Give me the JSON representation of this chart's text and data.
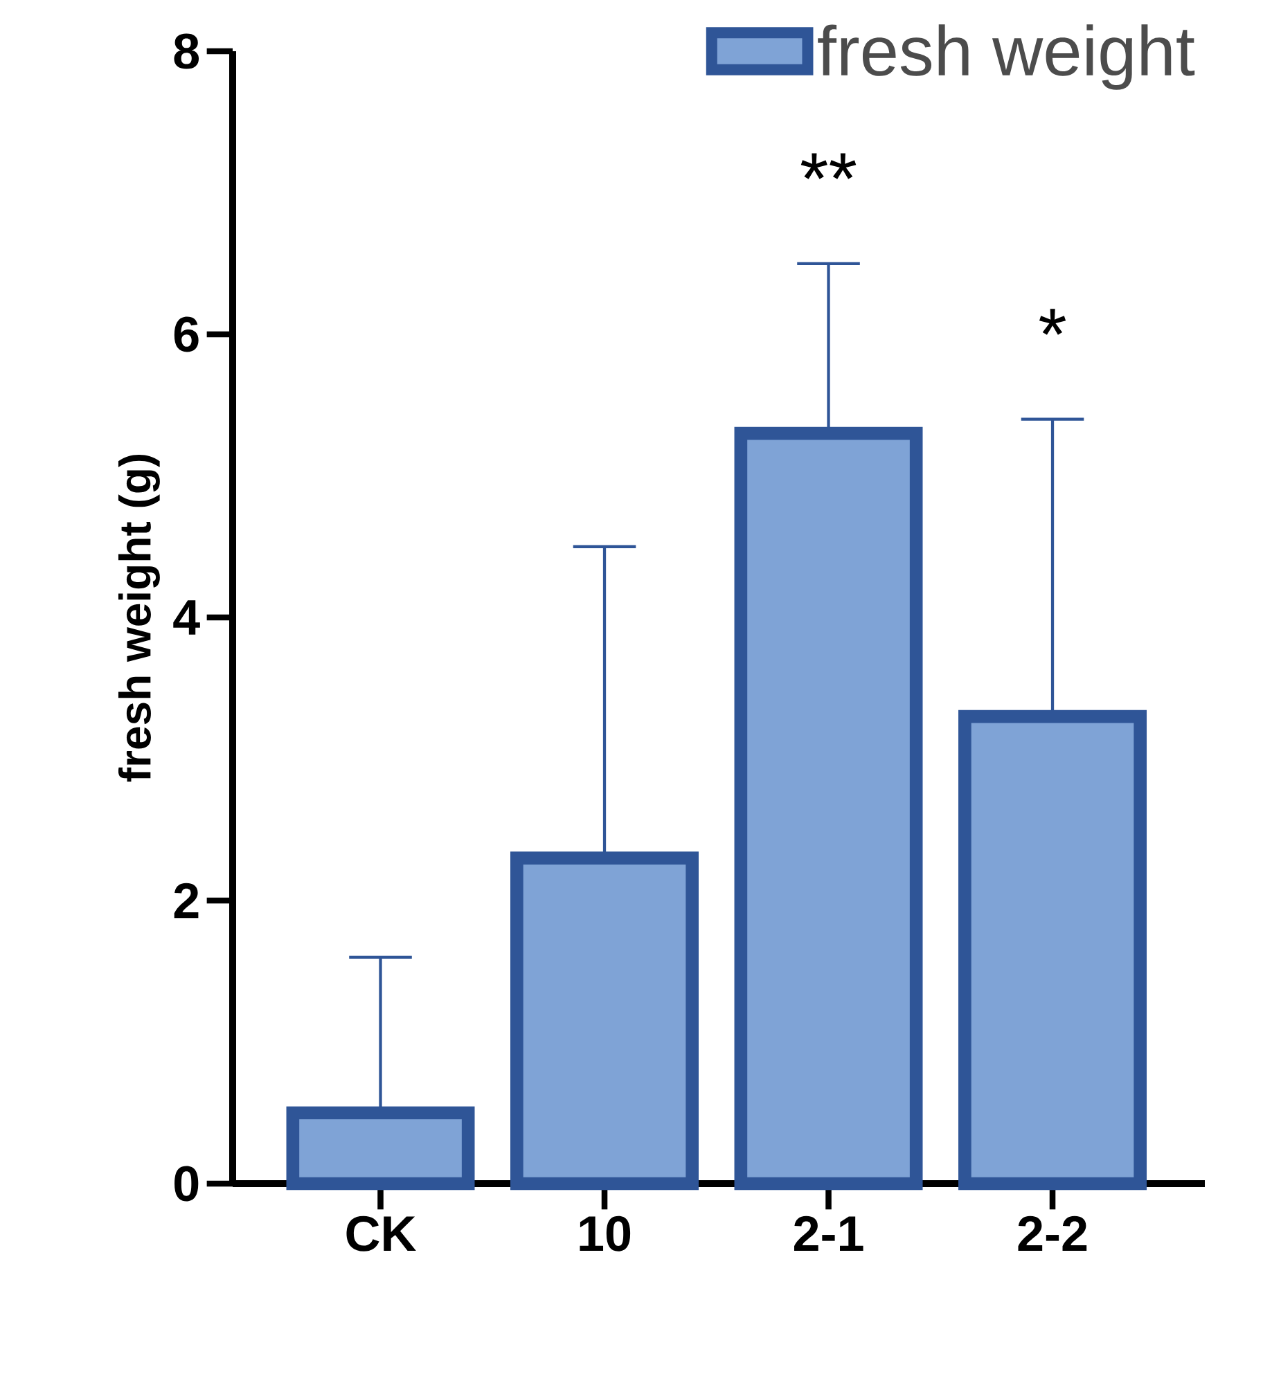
{
  "chart_data": {
    "type": "bar",
    "ylabel": "fresh weight (g)",
    "categories": [
      "CK",
      "10",
      "2-1",
      "2-2"
    ],
    "series": [
      {
        "name": "fresh weight",
        "color": "#7fa3d6",
        "values": [
          0.5,
          2.3,
          5.3,
          3.3
        ],
        "errors": [
          [
            0.5,
            1.6
          ],
          [
            2.3,
            4.5
          ],
          [
            5.3,
            6.5
          ],
          [
            3.3,
            5.4
          ]
        ]
      }
    ],
    "ylim": [
      0,
      8
    ],
    "yticks": [
      0,
      2,
      4,
      6,
      8
    ],
    "legend": "top right",
    "annotations": [
      "**",
      "*"
    ]
  }
}
